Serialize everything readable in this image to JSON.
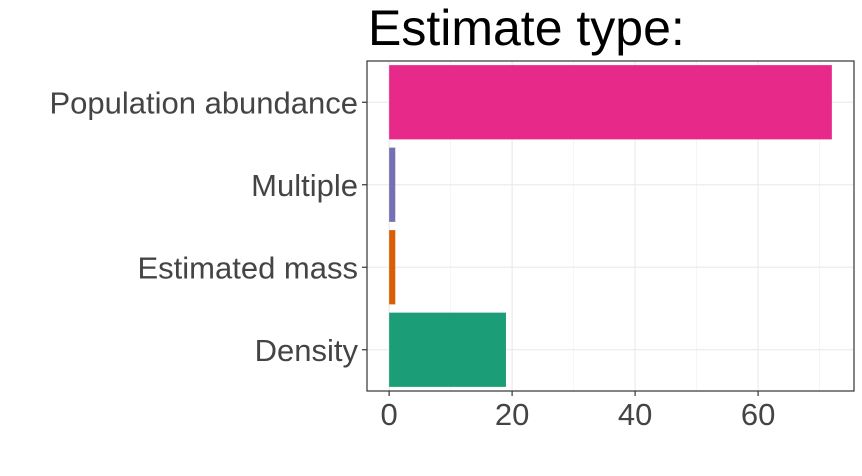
{
  "chart_data": {
    "type": "bar",
    "orientation": "horizontal",
    "title": "Estimate type:",
    "xlabel": "",
    "ylabel": "",
    "categories": [
      "Population abundance",
      "Multiple",
      "Estimated mass",
      "Density"
    ],
    "values": [
      72,
      1,
      1,
      19
    ],
    "colors": [
      "#e7298a",
      "#7570b3",
      "#d95f02",
      "#1b9e77"
    ],
    "xlim": [
      -3.6,
      75.6
    ],
    "xticks": [
      0,
      20,
      40,
      60
    ],
    "xtick_labels": [
      "0",
      "20",
      "40",
      "60"
    ],
    "grid": true,
    "legend": "none"
  }
}
